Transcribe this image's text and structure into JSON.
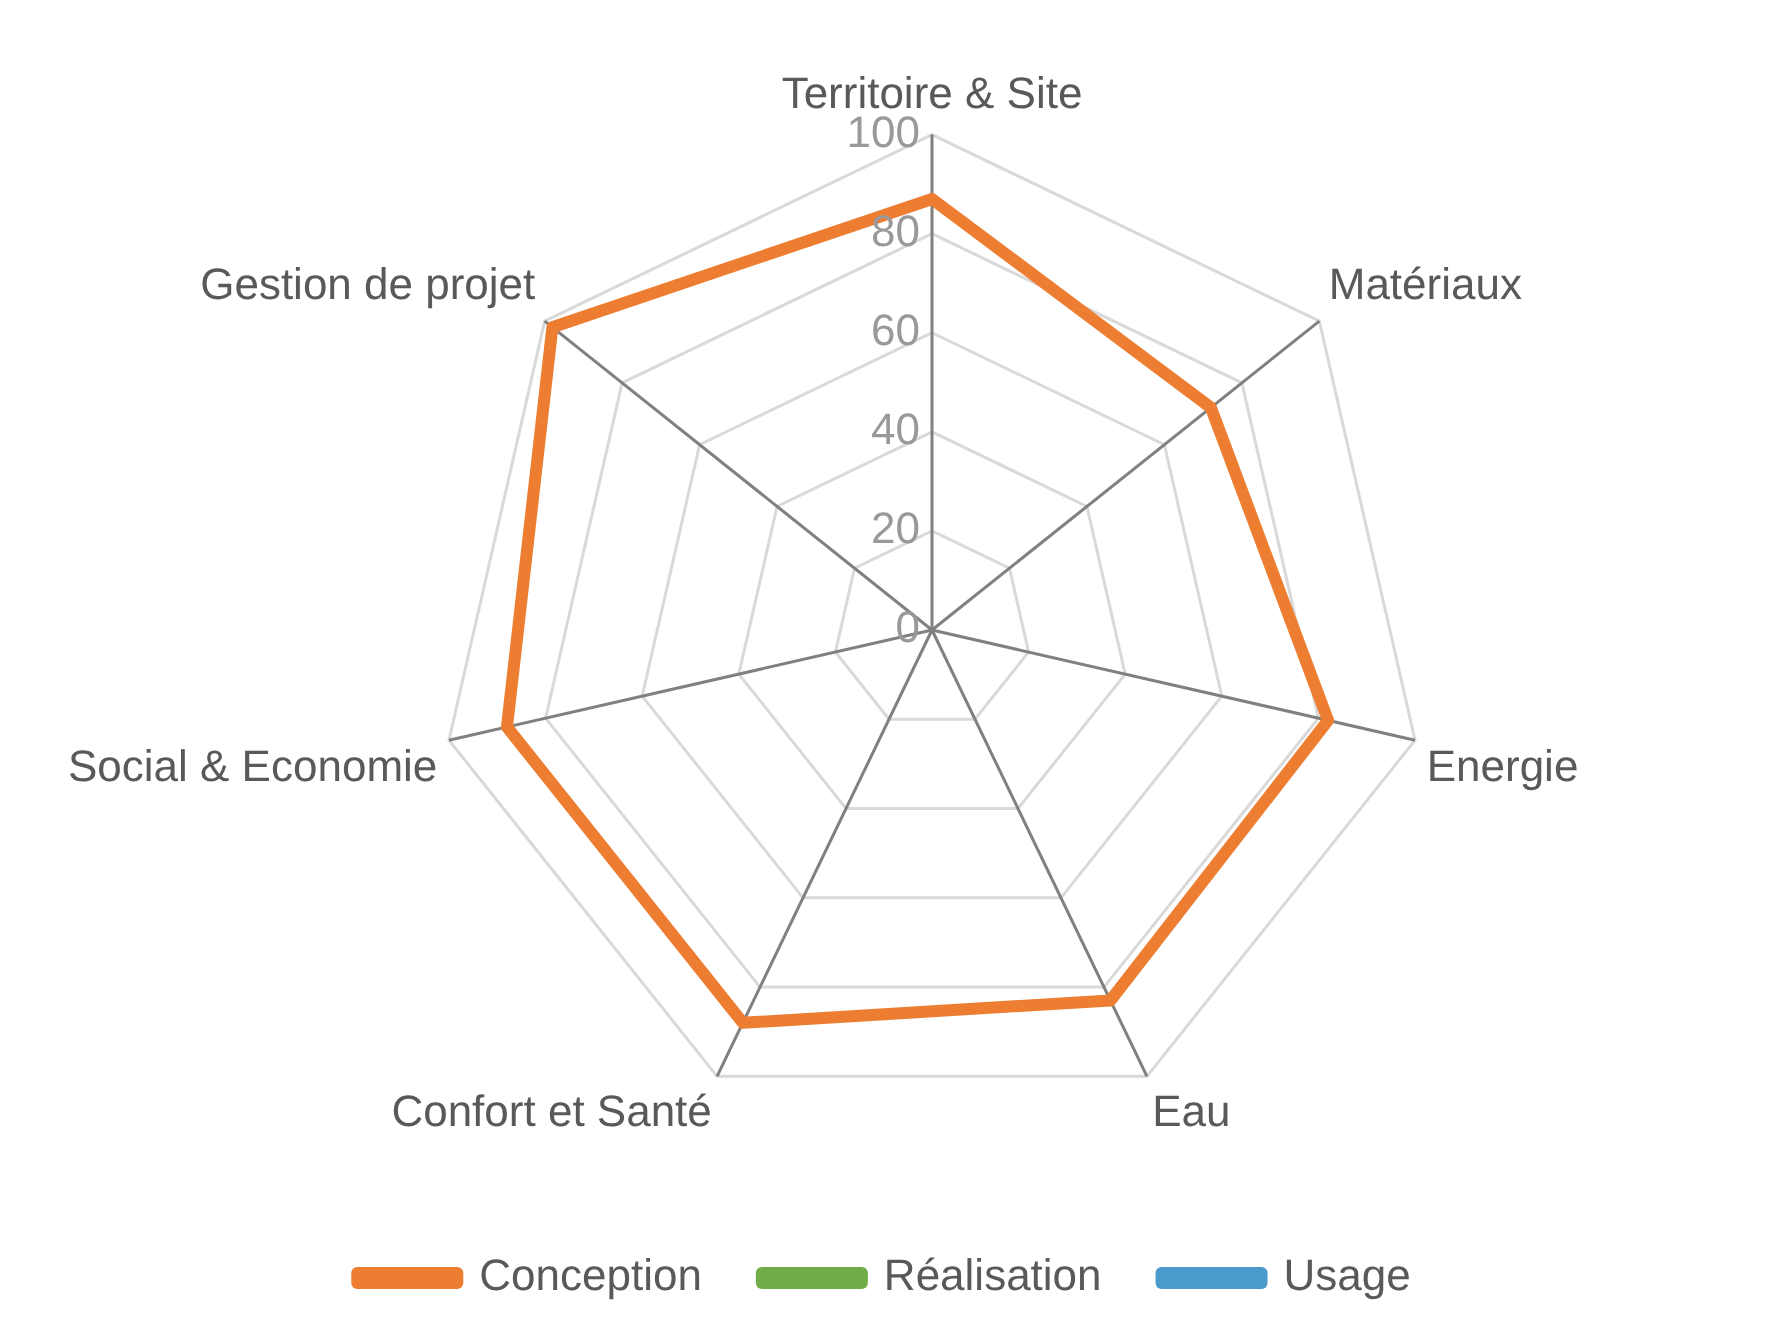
{
  "chart_data": {
    "type": "radar",
    "categories": [
      "Territoire & Site",
      "Matériaux",
      "Energie",
      "Eau",
      "Confort et Santé",
      "Social & Economie",
      "Gestion de projet"
    ],
    "series": [
      {
        "name": "Conception",
        "color": "#ed7d31",
        "values": [
          87,
          72,
          82,
          83,
          88,
          88,
          98
        ]
      },
      {
        "name": "Réalisation",
        "color": "#70ad47",
        "values": [
          null,
          null,
          null,
          null,
          null,
          null,
          null
        ]
      },
      {
        "name": "Usage",
        "color": "#4a9acb",
        "values": [
          null,
          null,
          null,
          null,
          null,
          null,
          null
        ]
      }
    ],
    "ylim": [
      0,
      100
    ],
    "yticks": [
      0,
      20,
      40,
      60,
      80,
      100
    ],
    "grid": true,
    "legend": "bottom",
    "marker": "none",
    "line_style": "solid"
  }
}
